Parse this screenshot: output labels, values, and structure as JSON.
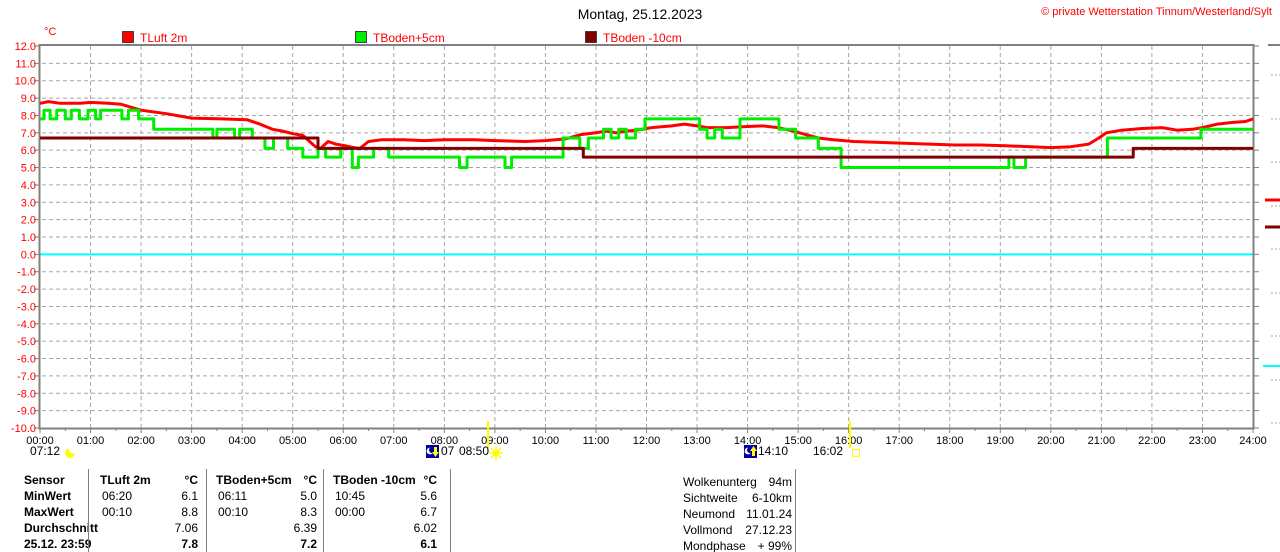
{
  "header": {
    "title": "Montag, 25.12.2023",
    "copyright": "© private Wetterstation Tinnum/Westerland/Sylt"
  },
  "legend": {
    "unit": "°C",
    "items": [
      {
        "label": "TLuft 2m",
        "color": "#ff0000"
      },
      {
        "label": "TBoden+5cm",
        "color": "#00ee00"
      },
      {
        "label": "TBoden -10cm",
        "color": "#800000"
      }
    ]
  },
  "chart_data": {
    "type": "line",
    "title": "Montag, 25.12.2023",
    "ylabel": "°C",
    "xlim": [
      0,
      24
    ],
    "ylim": [
      -10,
      12
    ],
    "grid": true,
    "x_ticks": [
      "00:00",
      "01:00",
      "02:00",
      "03:00",
      "04:00",
      "05:00",
      "06:00",
      "07:00",
      "08:00",
      "09:00",
      "10:00",
      "11:00",
      "12:00",
      "13:00",
      "14:00",
      "15:00",
      "16:00",
      "17:00",
      "18:00",
      "19:00",
      "20:00",
      "21:00",
      "22:00",
      "23:00",
      "24:00"
    ],
    "y_ticks": [
      "12.0",
      "11.0",
      "10.0",
      "9.0",
      "8.0",
      "7.0",
      "6.0",
      "5.0",
      "4.0",
      "3.0",
      "2.0",
      "1.0",
      "0.0",
      "-1.0",
      "-2.0",
      "-3.0",
      "-4.0",
      "-5.0",
      "-6.0",
      "-7.0",
      "-8.0",
      "-9.0",
      "-10.0"
    ],
    "zero_line_color": "#00ffff",
    "annotations": {
      "sunrise": {
        "time": "08:50",
        "hour": 8.833
      },
      "sunset": {
        "time": "16:02",
        "hour": 16.033
      }
    },
    "series": [
      {
        "name": "TLuft 2m",
        "color": "#ff0000",
        "step": false,
        "points": [
          [
            0,
            8.7
          ],
          [
            0.17,
            8.8
          ],
          [
            0.4,
            8.7
          ],
          [
            0.8,
            8.7
          ],
          [
            1.0,
            8.75
          ],
          [
            1.35,
            8.7
          ],
          [
            1.6,
            8.65
          ],
          [
            2.0,
            8.3
          ],
          [
            2.5,
            8.1
          ],
          [
            3.0,
            7.85
          ],
          [
            3.6,
            7.8
          ],
          [
            4.1,
            7.75
          ],
          [
            4.35,
            7.5
          ],
          [
            4.6,
            7.2
          ],
          [
            4.8,
            7.1
          ],
          [
            5.0,
            6.95
          ],
          [
            5.2,
            6.85
          ],
          [
            5.45,
            6.2
          ],
          [
            5.55,
            6.1
          ],
          [
            5.7,
            6.5
          ],
          [
            5.85,
            6.35
          ],
          [
            6.05,
            6.25
          ],
          [
            6.2,
            6.15
          ],
          [
            6.33,
            6.1
          ],
          [
            6.5,
            6.5
          ],
          [
            6.75,
            6.6
          ],
          [
            7.2,
            6.6
          ],
          [
            7.6,
            6.55
          ],
          [
            8.0,
            6.6
          ],
          [
            8.6,
            6.6
          ],
          [
            9.0,
            6.55
          ],
          [
            9.6,
            6.5
          ],
          [
            10.0,
            6.55
          ],
          [
            10.4,
            6.65
          ],
          [
            10.7,
            6.9
          ],
          [
            11.0,
            7.0
          ],
          [
            11.2,
            7.1
          ],
          [
            11.4,
            7.0
          ],
          [
            11.6,
            7.1
          ],
          [
            11.8,
            7.15
          ],
          [
            12.1,
            7.3
          ],
          [
            12.5,
            7.4
          ],
          [
            12.75,
            7.5
          ],
          [
            13.0,
            7.4
          ],
          [
            13.2,
            7.3
          ],
          [
            13.6,
            7.3
          ],
          [
            13.9,
            7.35
          ],
          [
            14.3,
            7.4
          ],
          [
            14.6,
            7.3
          ],
          [
            14.9,
            7.1
          ],
          [
            15.15,
            6.9
          ],
          [
            15.4,
            6.7
          ],
          [
            15.7,
            6.6
          ],
          [
            16.1,
            6.5
          ],
          [
            16.6,
            6.45
          ],
          [
            17.1,
            6.4
          ],
          [
            17.6,
            6.35
          ],
          [
            18.1,
            6.3
          ],
          [
            18.6,
            6.3
          ],
          [
            19.1,
            6.25
          ],
          [
            19.6,
            6.2
          ],
          [
            20.0,
            6.15
          ],
          [
            20.4,
            6.2
          ],
          [
            20.75,
            6.35
          ],
          [
            20.95,
            6.7
          ],
          [
            21.1,
            7.0
          ],
          [
            21.4,
            7.15
          ],
          [
            21.8,
            7.25
          ],
          [
            22.2,
            7.3
          ],
          [
            22.5,
            7.15
          ],
          [
            22.8,
            7.2
          ],
          [
            23.0,
            7.3
          ],
          [
            23.3,
            7.5
          ],
          [
            23.6,
            7.6
          ],
          [
            23.85,
            7.65
          ],
          [
            24,
            7.8
          ]
        ]
      },
      {
        "name": "TBoden+5cm",
        "color": "#00ee00",
        "step": true,
        "points": [
          [
            0,
            7.8
          ],
          [
            0.08,
            8.3
          ],
          [
            0.2,
            7.8
          ],
          [
            0.33,
            8.3
          ],
          [
            0.5,
            7.8
          ],
          [
            0.62,
            8.3
          ],
          [
            0.78,
            7.8
          ],
          [
            0.95,
            8.3
          ],
          [
            1.1,
            7.8
          ],
          [
            1.2,
            8.3
          ],
          [
            1.5,
            8.3
          ],
          [
            1.62,
            7.8
          ],
          [
            1.75,
            8.3
          ],
          [
            1.95,
            7.8
          ],
          [
            2.25,
            7.2
          ],
          [
            3.35,
            7.2
          ],
          [
            3.42,
            6.7
          ],
          [
            3.5,
            7.2
          ],
          [
            3.78,
            7.2
          ],
          [
            3.85,
            6.7
          ],
          [
            3.95,
            7.2
          ],
          [
            4.2,
            6.7
          ],
          [
            4.45,
            6.1
          ],
          [
            4.62,
            6.7
          ],
          [
            4.9,
            6.1
          ],
          [
            5.2,
            5.6
          ],
          [
            5.5,
            6.1
          ],
          [
            5.65,
            5.6
          ],
          [
            5.95,
            6.1
          ],
          [
            6.18,
            5.0
          ],
          [
            6.3,
            5.6
          ],
          [
            6.6,
            6.1
          ],
          [
            6.9,
            5.6
          ],
          [
            8.3,
            5.0
          ],
          [
            8.45,
            5.6
          ],
          [
            9.2,
            5.0
          ],
          [
            9.33,
            5.6
          ],
          [
            10.35,
            6.7
          ],
          [
            10.68,
            6.1
          ],
          [
            10.85,
            6.7
          ],
          [
            11.15,
            7.2
          ],
          [
            11.3,
            6.7
          ],
          [
            11.45,
            7.2
          ],
          [
            11.6,
            6.7
          ],
          [
            11.78,
            7.2
          ],
          [
            11.97,
            7.8
          ],
          [
            12.9,
            7.8
          ],
          [
            13.05,
            7.2
          ],
          [
            13.2,
            6.7
          ],
          [
            13.35,
            7.2
          ],
          [
            13.5,
            6.7
          ],
          [
            13.85,
            7.8
          ],
          [
            14.5,
            7.8
          ],
          [
            14.62,
            7.2
          ],
          [
            14.95,
            6.7
          ],
          [
            15.4,
            6.1
          ],
          [
            15.85,
            5.0
          ],
          [
            19.1,
            5.0
          ],
          [
            19.17,
            5.6
          ],
          [
            19.27,
            5.0
          ],
          [
            19.5,
            5.6
          ],
          [
            21.05,
            5.6
          ],
          [
            21.12,
            6.7
          ],
          [
            22.9,
            6.7
          ],
          [
            22.97,
            7.2
          ],
          [
            24,
            7.2
          ]
        ]
      },
      {
        "name": "TBoden -10cm",
        "color": "#800000",
        "step": true,
        "points": [
          [
            0,
            6.7
          ],
          [
            5.48,
            6.7
          ],
          [
            5.5,
            6.1
          ],
          [
            10.72,
            6.1
          ],
          [
            10.75,
            5.6
          ],
          [
            21.6,
            5.6
          ],
          [
            21.63,
            6.1
          ],
          [
            24,
            6.1
          ]
        ]
      }
    ]
  },
  "markers": {
    "moon_left_time": "07:12",
    "moonset_label": "07",
    "sunrise_time": "08:50",
    "moonrise_time": "14:10",
    "sunset_time": "16:02"
  },
  "bottom_table": {
    "row_labels": [
      "Sensor",
      "MinWert",
      "MaxWert",
      "Durchschnitt",
      "25.12. 23:59"
    ],
    "columns": [
      {
        "header": "TLuft 2m",
        "unit": "°C",
        "min_time": "06:20",
        "min": "6.1",
        "max_time": "00:10",
        "max": "8.8",
        "avg": "7.06",
        "last": "7.8"
      },
      {
        "header": "TBoden+5cm",
        "unit": "°C",
        "min_time": "06:11",
        "min": "5.0",
        "max_time": "00:10",
        "max": "8.3",
        "avg": "6.39",
        "last": "7.2"
      },
      {
        "header": "TBoden -10cm",
        "unit": "°C",
        "min_time": "10:45",
        "min": "5.6",
        "max_time": "00:00",
        "max": "6.7",
        "avg": "6.02",
        "last": "6.1"
      }
    ]
  },
  "astro_info": {
    "rows": [
      {
        "label": "Wolkenunterg",
        "value": "94m"
      },
      {
        "label": "Sichtweite",
        "value": "6-10km"
      },
      {
        "label": "Neumond",
        "value": "11.01.24"
      },
      {
        "label": "Vollmond",
        "value": "27.12.23"
      },
      {
        "label": "Mondphase",
        "value": "+ 99%"
      }
    ]
  }
}
